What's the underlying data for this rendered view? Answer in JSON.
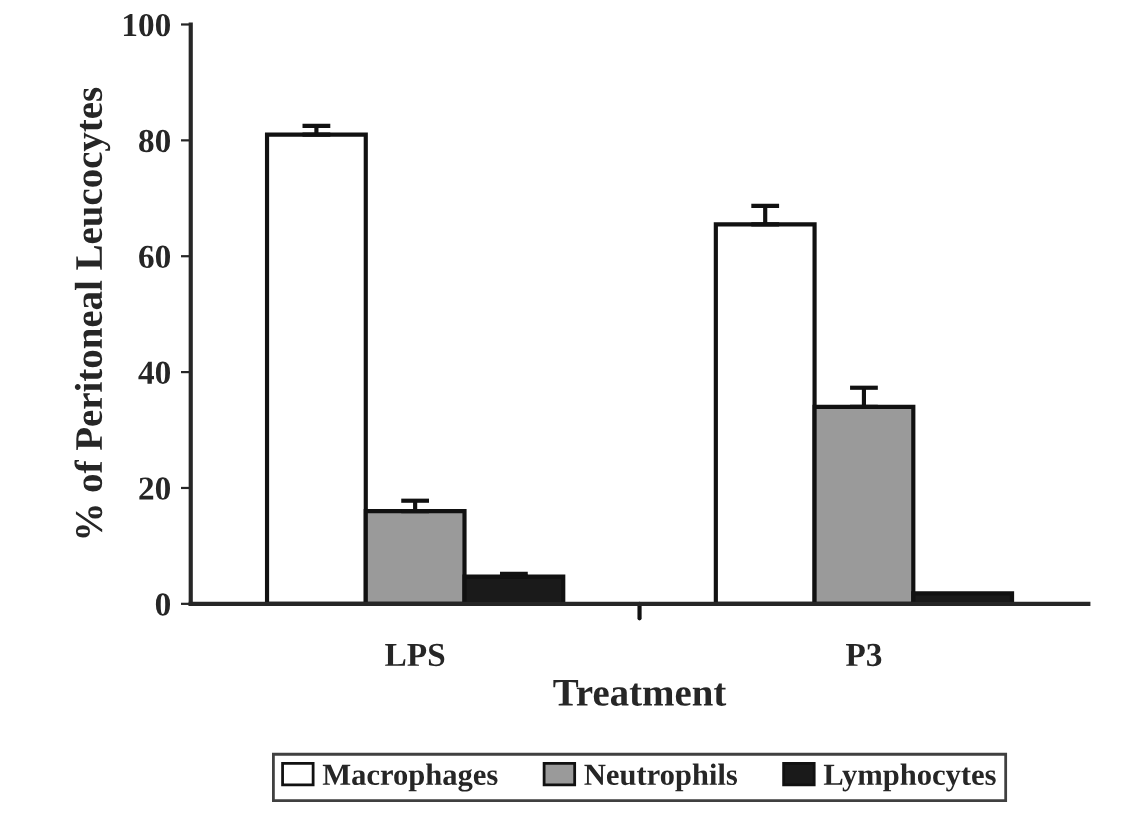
{
  "chart_data": {
    "type": "bar",
    "xlabel": "Treatment",
    "ylabel": "% of Peritoneal Leucocytes",
    "categories": [
      "LPS",
      "P3"
    ],
    "series": [
      {
        "name": "Macrophages",
        "color": "#ffffff",
        "values": [
          81,
          65.5
        ],
        "errors": [
          1.5,
          3.2
        ]
      },
      {
        "name": "Neutrophils",
        "color": "#9a9a9a",
        "values": [
          16,
          34
        ],
        "errors": [
          1.8,
          3.3
        ]
      },
      {
        "name": "Lymphocytes",
        "color": "#1a1a1a",
        "values": [
          4.7,
          1.8
        ],
        "errors": [
          0.5,
          null
        ]
      }
    ],
    "ylim": [
      0,
      100
    ],
    "yticks": [
      0,
      20,
      40,
      60,
      80,
      100
    ],
    "grid": false,
    "legend": "bottom"
  }
}
